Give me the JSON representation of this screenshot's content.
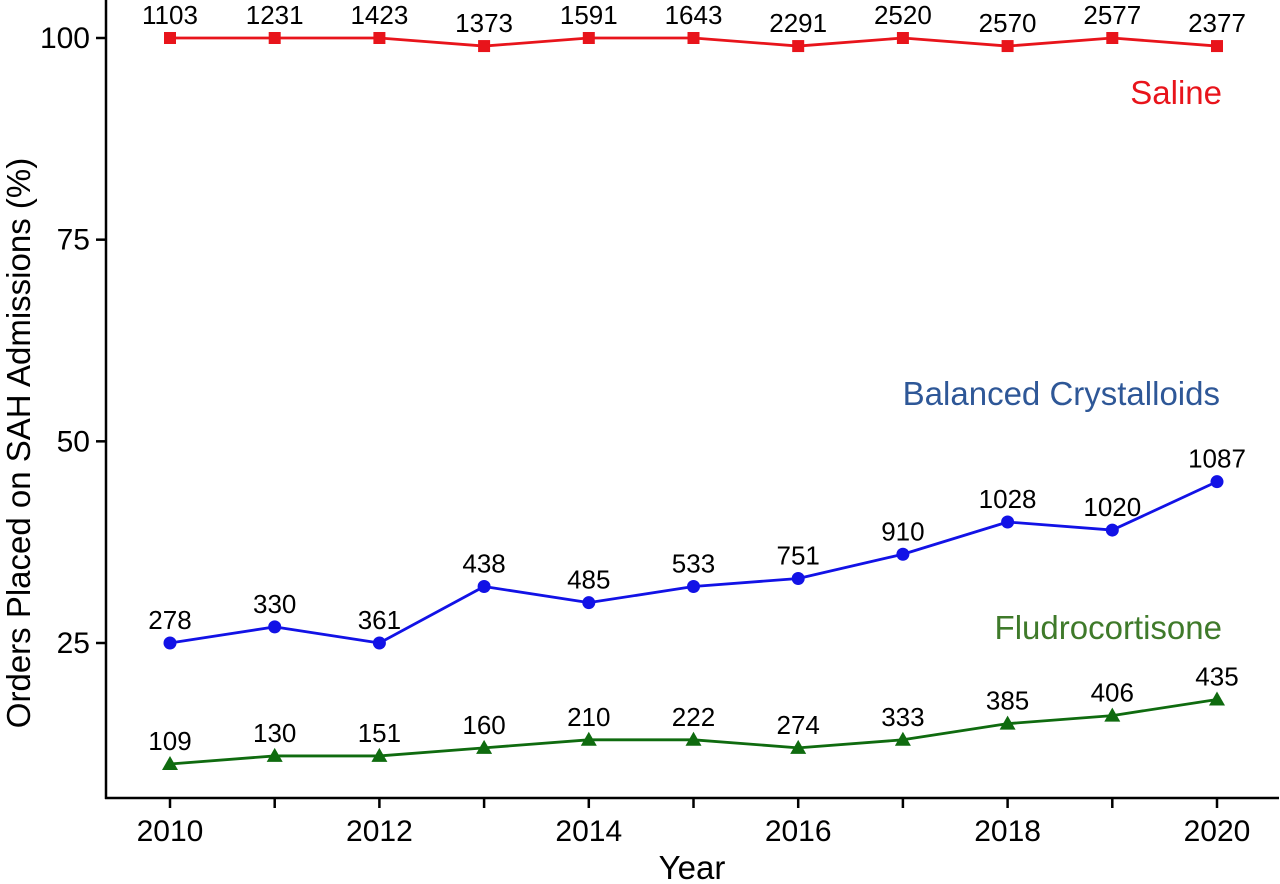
{
  "chart_data": {
    "type": "line",
    "xlabel": "Year",
    "ylabel": "Orders Placed on SAH Admissions (%)",
    "xlim": [
      2009.4,
      2020.6
    ],
    "ylim": [
      6,
      104.5
    ],
    "x_ticks": [
      2010,
      2011,
      2012,
      2013,
      2014,
      2015,
      2016,
      2017,
      2018,
      2019,
      2020
    ],
    "x_tick_labels": [
      "2010",
      "2012",
      "2014",
      "2016",
      "2018",
      "2020"
    ],
    "y_ticks": [
      25,
      50,
      75,
      100
    ],
    "y_tick_labels": [
      "25",
      "50",
      "75",
      "100"
    ],
    "grid": false,
    "legend": "direct labels on right side",
    "x": [
      2010,
      2011,
      2012,
      2013,
      2014,
      2015,
      2016,
      2017,
      2018,
      2019,
      2020
    ],
    "series": [
      {
        "name": "Saline",
        "color": "#e8141b",
        "marker": "square",
        "label_color": "#e8141b",
        "values": [
          100,
          100,
          100,
          99,
          100,
          100,
          99,
          100,
          99,
          100,
          99
        ],
        "data_labels": [
          "1103",
          "1231",
          "1423",
          "1373",
          "1591",
          "1643",
          "2291",
          "2520",
          "2570",
          "2577",
          "2377"
        ]
      },
      {
        "name": "Balanced Crystalloids",
        "color": "#1212e6",
        "marker": "circle",
        "label_color": "#2e5797",
        "values": [
          25,
          27,
          25,
          32,
          30,
          32,
          33,
          36,
          40,
          39,
          45
        ],
        "data_labels": [
          "278",
          "330",
          "361",
          "438",
          "485",
          "533",
          "751",
          "910",
          "1028",
          "1020",
          "1087"
        ]
      },
      {
        "name": "Fludrocortisone",
        "color": "#0f6b0f",
        "marker": "triangle",
        "label_color": "#3f7a2a",
        "values": [
          10,
          11,
          11,
          12,
          13,
          13,
          12,
          13,
          15,
          16,
          18
        ],
        "data_labels": [
          "109",
          "130",
          "151",
          "160",
          "210",
          "222",
          "274",
          "333",
          "385",
          "406",
          "435"
        ]
      }
    ]
  }
}
